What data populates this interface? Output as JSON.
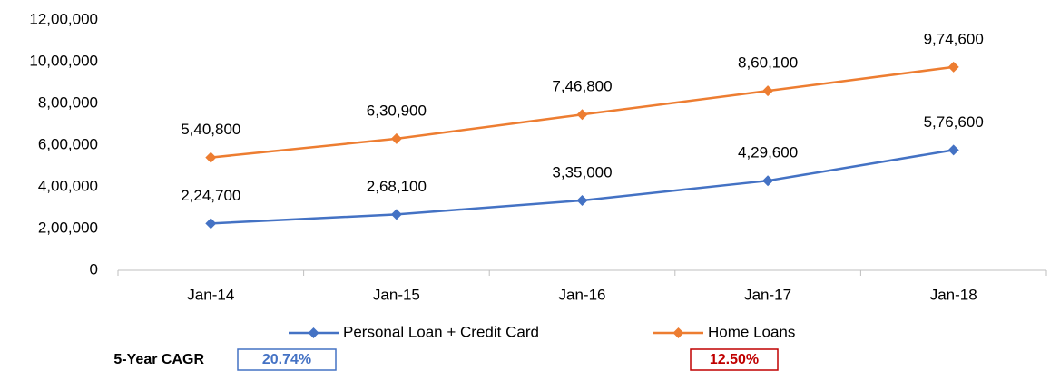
{
  "chart_data": {
    "type": "line",
    "categories": [
      "Jan-14",
      "Jan-15",
      "Jan-16",
      "Jan-17",
      "Jan-18"
    ],
    "series": [
      {
        "name": "Personal Loan + Credit Card",
        "color": "#4472c4",
        "values": [
          224700,
          268100,
          335000,
          429600,
          576600
        ],
        "value_labels": [
          "2,24,700",
          "2,68,100",
          "3,35,000",
          "4,29,600",
          "5,76,600"
        ]
      },
      {
        "name": "Home Loans",
        "color": "#ed7d31",
        "values": [
          540800,
          630900,
          746800,
          860100,
          974600
        ],
        "value_labels": [
          "5,40,800",
          "6,30,900",
          "7,46,800",
          "8,60,100",
          "9,74,600"
        ]
      }
    ],
    "ylim": [
      0,
      1200000
    ],
    "yticks": [
      0,
      {
        "value": 200000,
        "label": "2,00,000"
      },
      {
        "value": 400000,
        "label": "4,00,000"
      },
      {
        "value": 600000,
        "label": "6,00,000"
      },
      {
        "value": 800000,
        "label": "8,00,000"
      },
      {
        "value": 1000000,
        "label": "10,00,000"
      },
      {
        "value": 1200000,
        "label": "12,00,000"
      }
    ],
    "grid": false,
    "legend": "bottom",
    "annotations": [
      "5-Year CAGR",
      "20.74%",
      "12.50%"
    ]
  }
}
